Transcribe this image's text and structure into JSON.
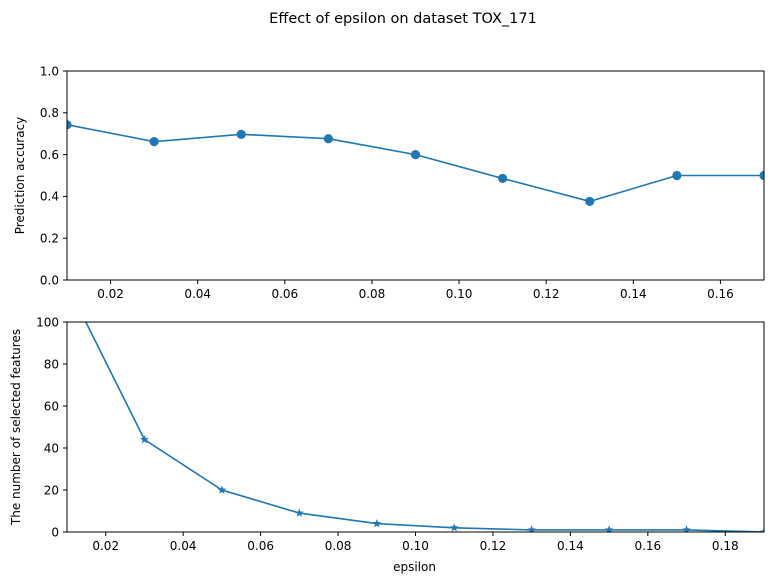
{
  "figure": {
    "title": "Effect of epsilon on dataset TOX_171"
  },
  "chart_data": [
    {
      "type": "line",
      "title": "",
      "xlabel": "",
      "ylabel": "Prediction accuracy",
      "xlim": [
        0.01,
        0.17
      ],
      "ylim": [
        0.0,
        1.0
      ],
      "xticks": [
        "0.02",
        "0.04",
        "0.06",
        "0.08",
        "0.10",
        "0.12",
        "0.14",
        "0.16"
      ],
      "yticks": [
        "0.0",
        "0.2",
        "0.4",
        "0.6",
        "0.8",
        "1.0"
      ],
      "grid": false,
      "marker": "circle",
      "color": "#1f77b4",
      "x": [
        0.01,
        0.03,
        0.05,
        0.07,
        0.09,
        0.11,
        0.13,
        0.15,
        0.17
      ],
      "y": [
        0.743,
        0.662,
        0.697,
        0.676,
        0.6,
        0.486,
        0.376,
        0.5,
        0.5
      ]
    },
    {
      "type": "line",
      "title": "",
      "xlabel": "epsilon",
      "ylabel": "The number of selected features",
      "xlim": [
        0.01,
        0.19
      ],
      "ylim": [
        0,
        100
      ],
      "xticks": [
        "0.02",
        "0.04",
        "0.06",
        "0.08",
        "0.10",
        "0.12",
        "0.14",
        "0.16",
        "0.18"
      ],
      "yticks": [
        "0",
        "20",
        "40",
        "60",
        "80",
        "100"
      ],
      "grid": false,
      "marker": "star",
      "color": "#1f77b4",
      "x": [
        0.01,
        0.03,
        0.05,
        0.07,
        0.09,
        0.11,
        0.13,
        0.15,
        0.17,
        0.19
      ],
      "y": [
        118,
        44,
        20,
        9,
        4,
        2,
        1,
        1,
        1,
        0
      ]
    }
  ]
}
